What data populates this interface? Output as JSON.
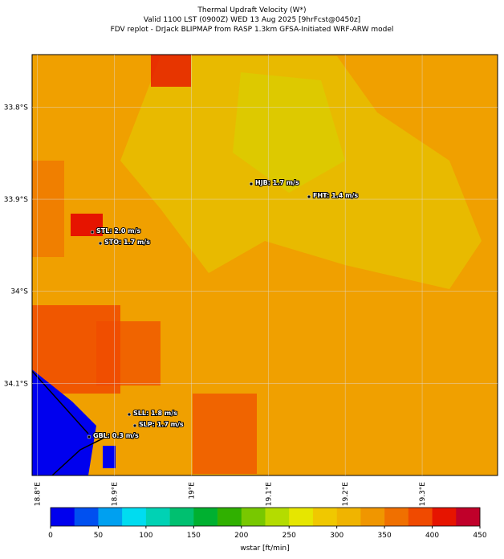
{
  "map": {
    "title": [
      "Thermal Updraft Velocity (W*)",
      "Valid 1100 LST (0900Z) WED 13 Aug 2025 [9hrFcst@0450z]",
      "FDV replot - DrJack BLIPMAP from RASP 1.3km GFSA-Initiated WRF-ARW model"
    ],
    "lat_range": [
      -34.2,
      -33.743
    ],
    "lon_range": [
      18.793,
      19.398
    ],
    "lat_ticks": [
      {
        "value": -33.8,
        "label": "33.8°S"
      },
      {
        "value": -33.9,
        "label": "33.9°S"
      },
      {
        "value": -34,
        "label": "34°S"
      },
      {
        "value": -34.1,
        "label": "34.1°S"
      }
    ],
    "lon_ticks": [
      {
        "value": 18.8,
        "label": "18.8°E"
      },
      {
        "value": 18.9,
        "label": "18.9°E"
      },
      {
        "value": 19,
        "label": "19°E"
      },
      {
        "value": 19.1,
        "label": "19.1°E"
      },
      {
        "value": 19.2,
        "label": "19.2°E"
      },
      {
        "value": 19.3,
        "label": "19.3°E"
      }
    ],
    "stations": [
      "HJB: 1.7 m/s",
      "FHT: 1.4 m/s",
      "STL: 2.0 m/s",
      "STO: 1.7 m/s",
      "SLL: 1.8 m/s",
      "SLP: 1.7 m/s",
      "GBL: 0.3 m/s"
    ]
  },
  "colorbar": {
    "label": "wstar [ft/min]",
    "range": [
      0,
      450
    ],
    "ticks": [
      0,
      50,
      100,
      150,
      200,
      250,
      300,
      350,
      400,
      450
    ],
    "colors": [
      "#0000ee",
      "#0050f0",
      "#00a0f0",
      "#00dcf0",
      "#00d2b4",
      "#00c070",
      "#00b030",
      "#30b000",
      "#78c800",
      "#b4dc00",
      "#e6e600",
      "#f0c800",
      "#f0b400",
      "#f09600",
      "#f07000",
      "#f04a00",
      "#e61400",
      "#c0002a"
    ]
  }
}
